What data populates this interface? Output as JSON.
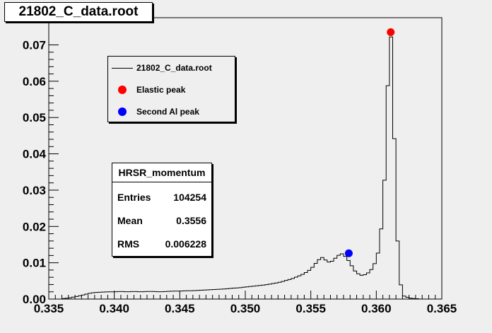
{
  "title": "21802_C_data.root",
  "legend": {
    "items": [
      {
        "label": "21802_C_data.root",
        "marker": "line",
        "color": "#000000"
      },
      {
        "label": "Elastic peak",
        "marker": "dot",
        "color": "#ff0000"
      },
      {
        "label": "Second Al peak",
        "marker": "dot",
        "color": "#0000ff"
      }
    ]
  },
  "stats": {
    "title": "HRSR_momentum",
    "rows": [
      {
        "label": "Entries",
        "value": "104254"
      },
      {
        "label": "Mean",
        "value": "0.3556"
      },
      {
        "label": "RMS",
        "value": "0.006228"
      }
    ]
  },
  "chart_data": {
    "type": "histogram",
    "title": "21802_C_data.root",
    "xlabel": "",
    "ylabel": "",
    "xlim": [
      0.335,
      0.365
    ],
    "ylim": [
      0,
      0.0775
    ],
    "grid": false,
    "legend_position": "top-left",
    "x_ticks": [
      "0.335",
      "0.340",
      "0.345",
      "0.350",
      "0.355",
      "0.360",
      "0.365"
    ],
    "y_ticks": [
      "0.00",
      "0.01",
      "0.02",
      "0.03",
      "0.04",
      "0.05",
      "0.06",
      "0.07"
    ],
    "series": [
      {
        "name": "21802_C_data.root",
        "color": "#000000",
        "bin_width": 0.00025,
        "x": [
          0.336,
          0.3365,
          0.337,
          0.3375,
          0.338,
          0.3385,
          0.339,
          0.3395,
          0.34,
          0.3405,
          0.341,
          0.3415,
          0.342,
          0.3425,
          0.343,
          0.3435,
          0.344,
          0.3445,
          0.345,
          0.3455,
          0.346,
          0.3465,
          0.347,
          0.3475,
          0.348,
          0.3485,
          0.349,
          0.3495,
          0.35,
          0.3505,
          0.351,
          0.3515,
          0.352,
          0.3525,
          0.353,
          0.3535,
          0.354,
          0.3545,
          0.355,
          0.3553,
          0.3556,
          0.3559,
          0.3562,
          0.3565,
          0.3568,
          0.3571,
          0.3574,
          0.3577,
          0.358,
          0.3583,
          0.3586,
          0.3589,
          0.3592,
          0.3595,
          0.3598,
          0.3601,
          0.3604,
          0.3606,
          0.3608,
          0.361,
          0.3612,
          0.3614,
          0.3617,
          0.362,
          0.3625,
          0.363
        ],
        "y": [
          0.0001,
          0.0003,
          0.0006,
          0.001,
          0.0015,
          0.0018,
          0.0019,
          0.002,
          0.002,
          0.0021,
          0.002,
          0.0021,
          0.002,
          0.0021,
          0.0021,
          0.002,
          0.0021,
          0.0022,
          0.0022,
          0.0023,
          0.0023,
          0.0024,
          0.0025,
          0.0026,
          0.0027,
          0.0028,
          0.003,
          0.0031,
          0.0033,
          0.0035,
          0.0037,
          0.0039,
          0.0042,
          0.0045,
          0.005,
          0.0055,
          0.0062,
          0.007,
          0.0082,
          0.0095,
          0.0108,
          0.0115,
          0.0105,
          0.01,
          0.011,
          0.012,
          0.0125,
          0.0115,
          0.01,
          0.008,
          0.007,
          0.0065,
          0.0068,
          0.0075,
          0.009,
          0.012,
          0.02,
          0.03,
          0.052,
          0.07,
          0.0735,
          0.04,
          0.008,
          0.001,
          0.0003,
          0.0001
        ]
      },
      {
        "name": "Elastic peak",
        "color": "#ff0000",
        "x": [
          0.3611
        ],
        "y": [
          0.0735
        ]
      },
      {
        "name": "Second Al peak",
        "color": "#0000ff",
        "x": [
          0.3579
        ],
        "y": [
          0.0126
        ]
      }
    ]
  }
}
